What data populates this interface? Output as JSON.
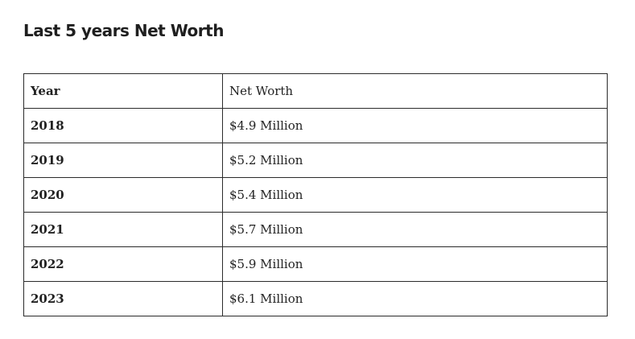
{
  "title": "Last 5 years Net Worth",
  "table": {
    "headers": [
      "Year",
      "Net Worth"
    ],
    "rows": [
      {
        "year": "2018",
        "net_worth": "$4.9 Million"
      },
      {
        "year": "2019",
        "net_worth": "$5.2 Million"
      },
      {
        "year": "2020",
        "net_worth": "$5.4 Million"
      },
      {
        "year": "2021",
        "net_worth": "$5.7 Million"
      },
      {
        "year": "2022",
        "net_worth": "$5.9 Million"
      },
      {
        "year": "2023",
        "net_worth": "$6.1 Million"
      }
    ]
  }
}
